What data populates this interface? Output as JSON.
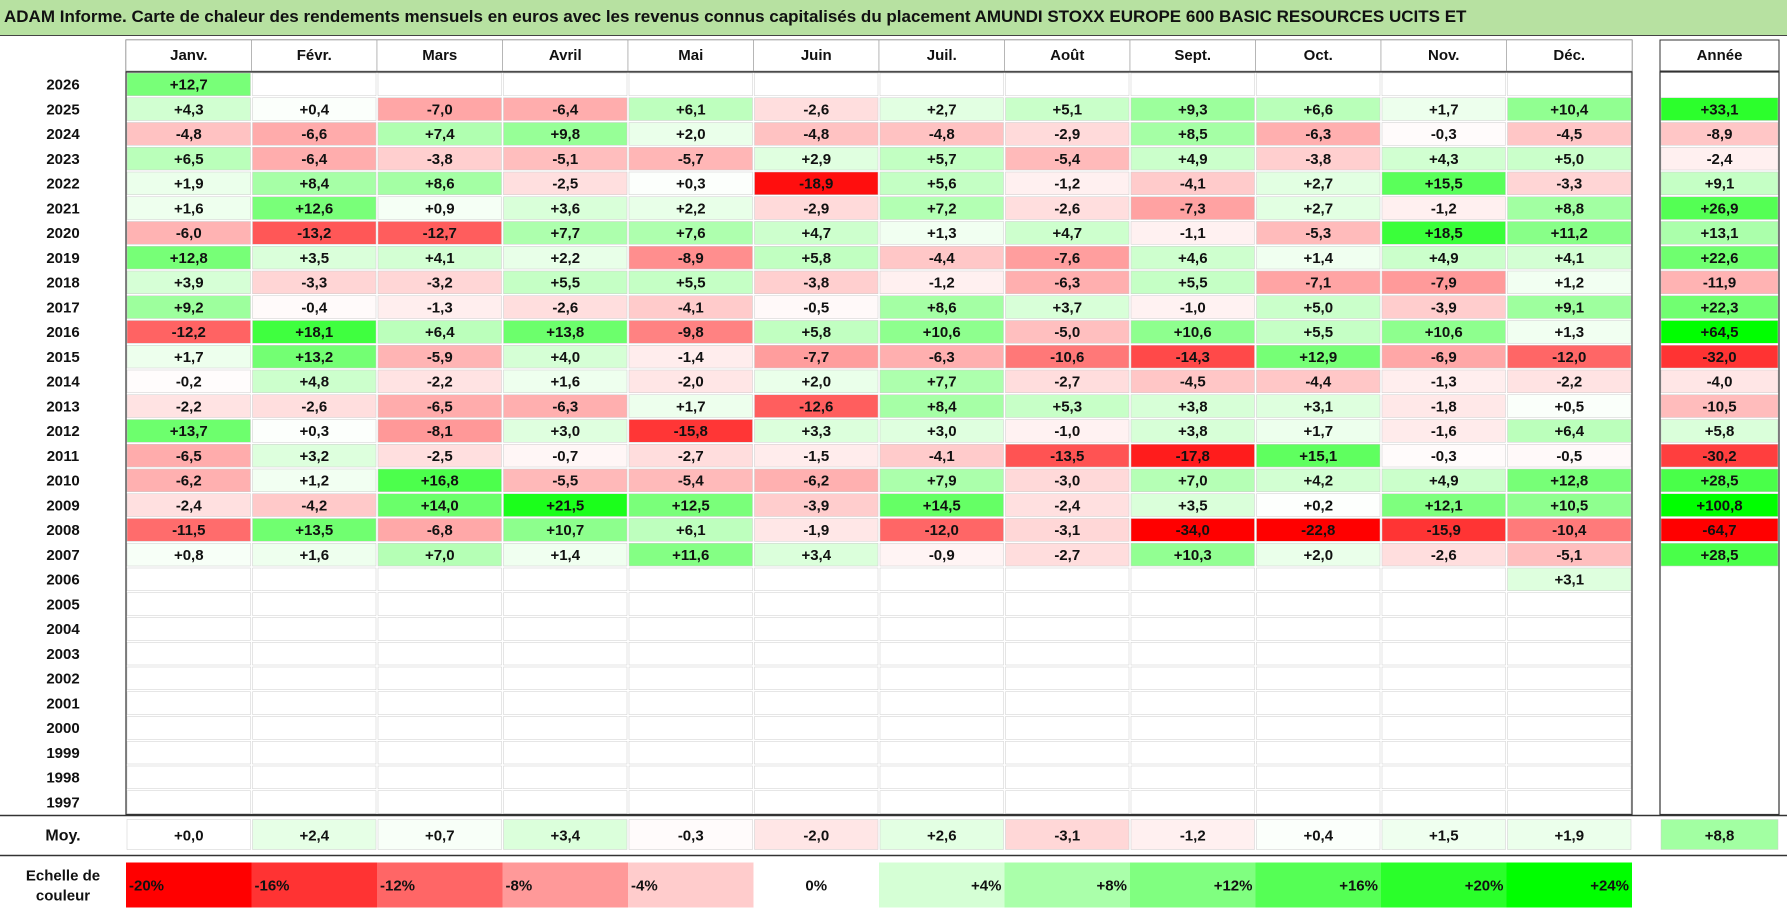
{
  "title": "ADAM Informe. Carte de chaleur des rendements mensuels en euros avec les revenus connus capitalisés du placement AMUNDI STOXX EUROPE 600 BASIC RESOURCES UCITS ET",
  "chart_data": {
    "type": "heatmap",
    "columns": [
      "Janv.",
      "Févr.",
      "Mars",
      "Avril",
      "Mai",
      "Juin",
      "Juil.",
      "Août",
      "Sept.",
      "Oct.",
      "Nov.",
      "Déc."
    ],
    "year_header": "Année",
    "rows": [
      {
        "year": "2026",
        "months": [
          "+12,7",
          "",
          "",
          "",
          "",
          "",
          "",
          "",
          "",
          "",
          "",
          ""
        ],
        "annual": ""
      },
      {
        "year": "2025",
        "months": [
          "+4,3",
          "+0,4",
          "-7,0",
          "-6,4",
          "+6,1",
          "-2,6",
          "+2,7",
          "+5,1",
          "+9,3",
          "+6,6",
          "+1,7",
          "+10,4"
        ],
        "annual": "+33,1"
      },
      {
        "year": "2024",
        "months": [
          "-4,8",
          "-6,6",
          "+7,4",
          "+9,8",
          "+2,0",
          "-4,8",
          "-4,8",
          "-2,9",
          "+8,5",
          "-6,3",
          "-0,3",
          "-4,5"
        ],
        "annual": "-8,9"
      },
      {
        "year": "2023",
        "months": [
          "+6,5",
          "-6,4",
          "-3,8",
          "-5,1",
          "-5,7",
          "+2,9",
          "+5,7",
          "-5,4",
          "+4,9",
          "-3,8",
          "+4,3",
          "+5,0"
        ],
        "annual": "-2,4"
      },
      {
        "year": "2022",
        "months": [
          "+1,9",
          "+8,4",
          "+8,6",
          "-2,5",
          "+0,3",
          "-18,9",
          "+5,6",
          "-1,2",
          "-4,1",
          "+2,7",
          "+15,5",
          "-3,3"
        ],
        "annual": "+9,1"
      },
      {
        "year": "2021",
        "months": [
          "+1,6",
          "+12,6",
          "+0,9",
          "+3,6",
          "+2,2",
          "-2,9",
          "+7,2",
          "-2,6",
          "-7,3",
          "+2,7",
          "-1,2",
          "+8,8"
        ],
        "annual": "+26,9"
      },
      {
        "year": "2020",
        "months": [
          "-6,0",
          "-13,2",
          "-12,7",
          "+7,7",
          "+7,6",
          "+4,7",
          "+1,3",
          "+4,7",
          "-1,1",
          "-5,3",
          "+18,5",
          "+11,2"
        ],
        "annual": "+13,1"
      },
      {
        "year": "2019",
        "months": [
          "+12,8",
          "+3,5",
          "+4,1",
          "+2,2",
          "-8,9",
          "+5,8",
          "-4,4",
          "-7,6",
          "+4,6",
          "+1,4",
          "+4,9",
          "+4,1"
        ],
        "annual": "+22,6"
      },
      {
        "year": "2018",
        "months": [
          "+3,9",
          "-3,3",
          "-3,2",
          "+5,5",
          "+5,5",
          "-3,8",
          "-1,2",
          "-6,3",
          "+5,5",
          "-7,1",
          "-7,9",
          "+1,2"
        ],
        "annual": "-11,9"
      },
      {
        "year": "2017",
        "months": [
          "+9,2",
          "-0,4",
          "-1,3",
          "-2,6",
          "-4,1",
          "-0,5",
          "+8,6",
          "+3,7",
          "-1,0",
          "+5,0",
          "-3,9",
          "+9,1"
        ],
        "annual": "+22,3"
      },
      {
        "year": "2016",
        "months": [
          "-12,2",
          "+18,1",
          "+6,4",
          "+13,8",
          "-9,8",
          "+5,8",
          "+10,6",
          "-5,0",
          "+10,6",
          "+5,5",
          "+10,6",
          "+1,3"
        ],
        "annual": "+64,5"
      },
      {
        "year": "2015",
        "months": [
          "+1,7",
          "+13,2",
          "-5,9",
          "+4,0",
          "-1,4",
          "-7,7",
          "-6,3",
          "-10,6",
          "-14,3",
          "+12,9",
          "-6,9",
          "-12,0"
        ],
        "annual": "-32,0"
      },
      {
        "year": "2014",
        "months": [
          "-0,2",
          "+4,8",
          "-2,2",
          "+1,6",
          "-2,0",
          "+2,0",
          "+7,7",
          "-2,7",
          "-4,5",
          "-4,4",
          "-1,3",
          "-2,2"
        ],
        "annual": "-4,0"
      },
      {
        "year": "2013",
        "months": [
          "-2,2",
          "-2,6",
          "-6,5",
          "-6,3",
          "+1,7",
          "-12,6",
          "+8,4",
          "+5,3",
          "+3,8",
          "+3,1",
          "-1,8",
          "+0,5"
        ],
        "annual": "-10,5"
      },
      {
        "year": "2012",
        "months": [
          "+13,7",
          "+0,3",
          "-8,1",
          "+3,0",
          "-15,8",
          "+3,3",
          "+3,0",
          "-1,0",
          "+3,8",
          "+1,7",
          "-1,6",
          "+6,4"
        ],
        "annual": "+5,8"
      },
      {
        "year": "2011",
        "months": [
          "-6,5",
          "+3,2",
          "-2,5",
          "-0,7",
          "-2,7",
          "-1,5",
          "-4,1",
          "-13,5",
          "-17,8",
          "+15,1",
          "-0,3",
          "-0,5"
        ],
        "annual": "-30,2"
      },
      {
        "year": "2010",
        "months": [
          "-6,2",
          "+1,2",
          "+16,8",
          "-5,5",
          "-5,4",
          "-6,2",
          "+7,9",
          "-3,0",
          "+7,0",
          "+4,2",
          "+4,9",
          "+12,8"
        ],
        "annual": "+28,5"
      },
      {
        "year": "2009",
        "months": [
          "-2,4",
          "-4,2",
          "+14,0",
          "+21,5",
          "+12,5",
          "-3,9",
          "+14,5",
          "-2,4",
          "+3,5",
          "+0,2",
          "+12,1",
          "+10,5"
        ],
        "annual": "+100,8"
      },
      {
        "year": "2008",
        "months": [
          "-11,5",
          "+13,5",
          "-6,8",
          "+10,7",
          "+6,1",
          "-1,9",
          "-12,0",
          "-3,1",
          "-34,0",
          "-22,8",
          "-15,9",
          "-10,4"
        ],
        "annual": "-64,7"
      },
      {
        "year": "2007",
        "months": [
          "+0,8",
          "+1,6",
          "+7,0",
          "+1,4",
          "+11,6",
          "+3,4",
          "-0,9",
          "-2,7",
          "+10,3",
          "+2,0",
          "-2,6",
          "-5,1"
        ],
        "annual": "+28,5"
      },
      {
        "year": "2006",
        "months": [
          "",
          "",
          "",
          "",
          "",
          "",
          "",
          "",
          "",
          "",
          "",
          "+3,1"
        ],
        "annual": ""
      },
      {
        "year": "2005",
        "months": [
          "",
          "",
          "",
          "",
          "",
          "",
          "",
          "",
          "",
          "",
          "",
          ""
        ],
        "annual": ""
      },
      {
        "year": "2004",
        "months": [
          "",
          "",
          "",
          "",
          "",
          "",
          "",
          "",
          "",
          "",
          "",
          ""
        ],
        "annual": ""
      },
      {
        "year": "2003",
        "months": [
          "",
          "",
          "",
          "",
          "",
          "",
          "",
          "",
          "",
          "",
          "",
          ""
        ],
        "annual": ""
      },
      {
        "year": "2002",
        "months": [
          "",
          "",
          "",
          "",
          "",
          "",
          "",
          "",
          "",
          "",
          "",
          ""
        ],
        "annual": ""
      },
      {
        "year": "2001",
        "months": [
          "",
          "",
          "",
          "",
          "",
          "",
          "",
          "",
          "",
          "",
          "",
          ""
        ],
        "annual": ""
      },
      {
        "year": "2000",
        "months": [
          "",
          "",
          "",
          "",
          "",
          "",
          "",
          "",
          "",
          "",
          "",
          ""
        ],
        "annual": ""
      },
      {
        "year": "1999",
        "months": [
          "",
          "",
          "",
          "",
          "",
          "",
          "",
          "",
          "",
          "",
          "",
          ""
        ],
        "annual": ""
      },
      {
        "year": "1998",
        "months": [
          "",
          "",
          "",
          "",
          "",
          "",
          "",
          "",
          "",
          "",
          "",
          ""
        ],
        "annual": ""
      },
      {
        "year": "1997",
        "months": [
          "",
          "",
          "",
          "",
          "",
          "",
          "",
          "",
          "",
          "",
          "",
          ""
        ],
        "annual": ""
      }
    ],
    "average": {
      "label": "Moy.",
      "months": [
        "+0,0",
        "+2,4",
        "+0,7",
        "+3,4",
        "-0,3",
        "-2,0",
        "+2,6",
        "-3,1",
        "-1,2",
        "+0,4",
        "+1,5",
        "+1,9"
      ],
      "annual": "+8,8"
    },
    "scale": {
      "label_line1": "Echelle de",
      "label_line2": "couleur",
      "steps": [
        "-20%",
        "-16%",
        "-12%",
        "-8%",
        "-4%",
        "0%",
        "+4%",
        "+8%",
        "+12%",
        "+16%",
        "+20%",
        "+24%"
      ]
    },
    "colors": {
      "positive_max": "#00ff00",
      "negative_max": "#ff0000",
      "neutral": "#ffffff",
      "header_bg": "#b7e1a1"
    }
  }
}
